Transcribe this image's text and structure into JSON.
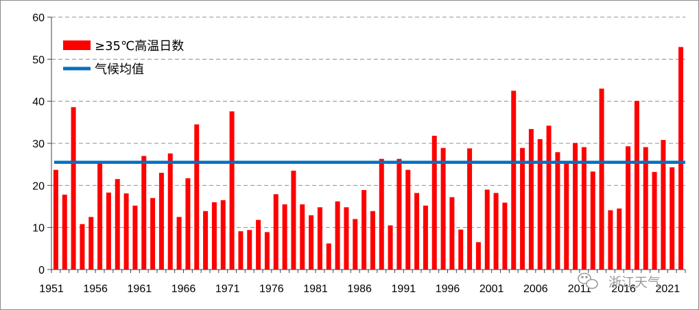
{
  "chart_data": {
    "type": "bar",
    "x_start_year": 1951,
    "x_tick_labels": [
      "1951",
      "1956",
      "1961",
      "1966",
      "1971",
      "1976",
      "1981",
      "1986",
      "1991",
      "1996",
      "2001",
      "2006",
      "2011",
      "2016",
      "2021"
    ],
    "y_tick_labels": [
      "0",
      "10",
      "20",
      "30",
      "40",
      "50",
      "60"
    ],
    "ylim": [
      0,
      60
    ],
    "grid": true,
    "legend": {
      "placement": "top-left",
      "entries": [
        "≥35℃高温日数",
        "气候均值"
      ]
    },
    "series": [
      {
        "name": "≥35℃高温日数",
        "color": "#ff0000",
        "values": [
          23.7,
          17.8,
          38.6,
          10.8,
          12.5,
          25.8,
          18.3,
          21.5,
          18.1,
          15.2,
          27.0,
          17.0,
          23.0,
          27.6,
          12.5,
          21.7,
          34.5,
          13.9,
          16.0,
          16.5,
          37.6,
          9.1,
          9.4,
          11.8,
          8.9,
          17.9,
          15.5,
          23.5,
          15.5,
          12.9,
          14.8,
          6.2,
          16.2,
          14.8,
          12.0,
          18.9,
          13.9,
          26.3,
          10.5,
          26.3,
          23.7,
          18.2,
          15.2,
          31.8,
          28.9,
          17.2,
          9.5,
          28.8,
          6.5,
          19.0,
          18.2,
          15.9,
          42.5,
          28.9,
          33.4,
          31.0,
          34.2,
          27.9,
          25.2,
          30.1,
          29.1,
          23.3,
          43.0,
          14.1,
          14.5,
          29.3,
          40.1,
          29.1,
          23.2,
          30.8,
          24.3,
          52.9
        ]
      }
    ],
    "reference_line": {
      "name": "气候均值",
      "value": 25.5,
      "color": "#0070c0"
    }
  },
  "watermark": {
    "text": "浙江天气"
  }
}
